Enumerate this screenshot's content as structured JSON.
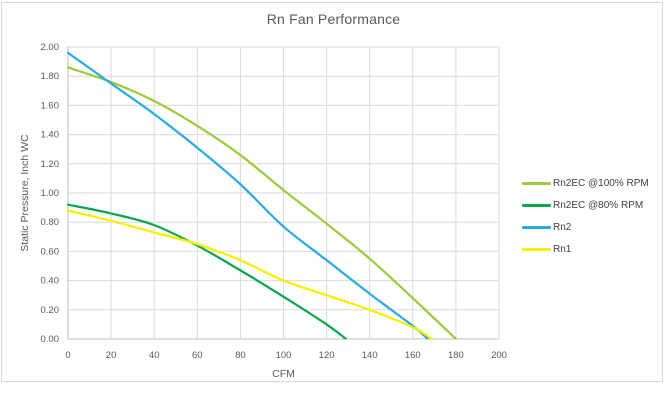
{
  "window": {
    "background": "#FFFFFF",
    "border_color": "#D6D6D6"
  },
  "chart_data": {
    "type": "line",
    "title": "Rn Fan Performance",
    "xlabel": "CFM",
    "ylabel": "Static Pressure, Inch WC",
    "xlim": [
      0,
      200
    ],
    "ylim": [
      0,
      2.0
    ],
    "grid": true,
    "smooth": true,
    "legend_position": "right",
    "x_ticks": [
      0,
      20,
      40,
      60,
      80,
      100,
      120,
      140,
      160,
      180,
      200
    ],
    "y_ticks": [
      "0.00",
      "0.20",
      "0.40",
      "0.60",
      "0.80",
      "1.00",
      "1.20",
      "1.40",
      "1.60",
      "1.80",
      "2.00"
    ],
    "grid_color": "#D9D9D9",
    "axis_line_color": "#BFBFBF",
    "text_color": "#595959",
    "legend_text_color": "#404040",
    "series": [
      {
        "name": "Rn2EC @100% RPM",
        "color": "#9DCB3D",
        "points": [
          [
            0,
            1.86
          ],
          [
            20,
            1.76
          ],
          [
            40,
            1.63
          ],
          [
            60,
            1.46
          ],
          [
            80,
            1.26
          ],
          [
            100,
            1.02
          ],
          [
            120,
            0.79
          ],
          [
            140,
            0.55
          ],
          [
            160,
            0.28
          ],
          [
            180,
            0.0
          ]
        ]
      },
      {
        "name": "Rn2EC @80% RPM",
        "color": "#0CA64F",
        "points": [
          [
            0,
            0.92
          ],
          [
            20,
            0.86
          ],
          [
            40,
            0.78
          ],
          [
            60,
            0.64
          ],
          [
            80,
            0.47
          ],
          [
            100,
            0.29
          ],
          [
            120,
            0.1
          ],
          [
            129,
            0.0
          ]
        ]
      },
      {
        "name": "Rn2",
        "color": "#2BABE2",
        "points": [
          [
            0,
            1.96
          ],
          [
            20,
            1.75
          ],
          [
            40,
            1.54
          ],
          [
            60,
            1.31
          ],
          [
            80,
            1.06
          ],
          [
            100,
            0.77
          ],
          [
            120,
            0.54
          ],
          [
            140,
            0.31
          ],
          [
            160,
            0.09
          ],
          [
            167,
            0.0
          ]
        ]
      },
      {
        "name": "Rn1",
        "color": "#F7EF00",
        "points": [
          [
            0,
            0.88
          ],
          [
            20,
            0.81
          ],
          [
            40,
            0.73
          ],
          [
            60,
            0.65
          ],
          [
            80,
            0.54
          ],
          [
            100,
            0.4
          ],
          [
            120,
            0.3
          ],
          [
            140,
            0.2
          ],
          [
            160,
            0.08
          ],
          [
            169,
            0.0
          ]
        ]
      }
    ]
  }
}
